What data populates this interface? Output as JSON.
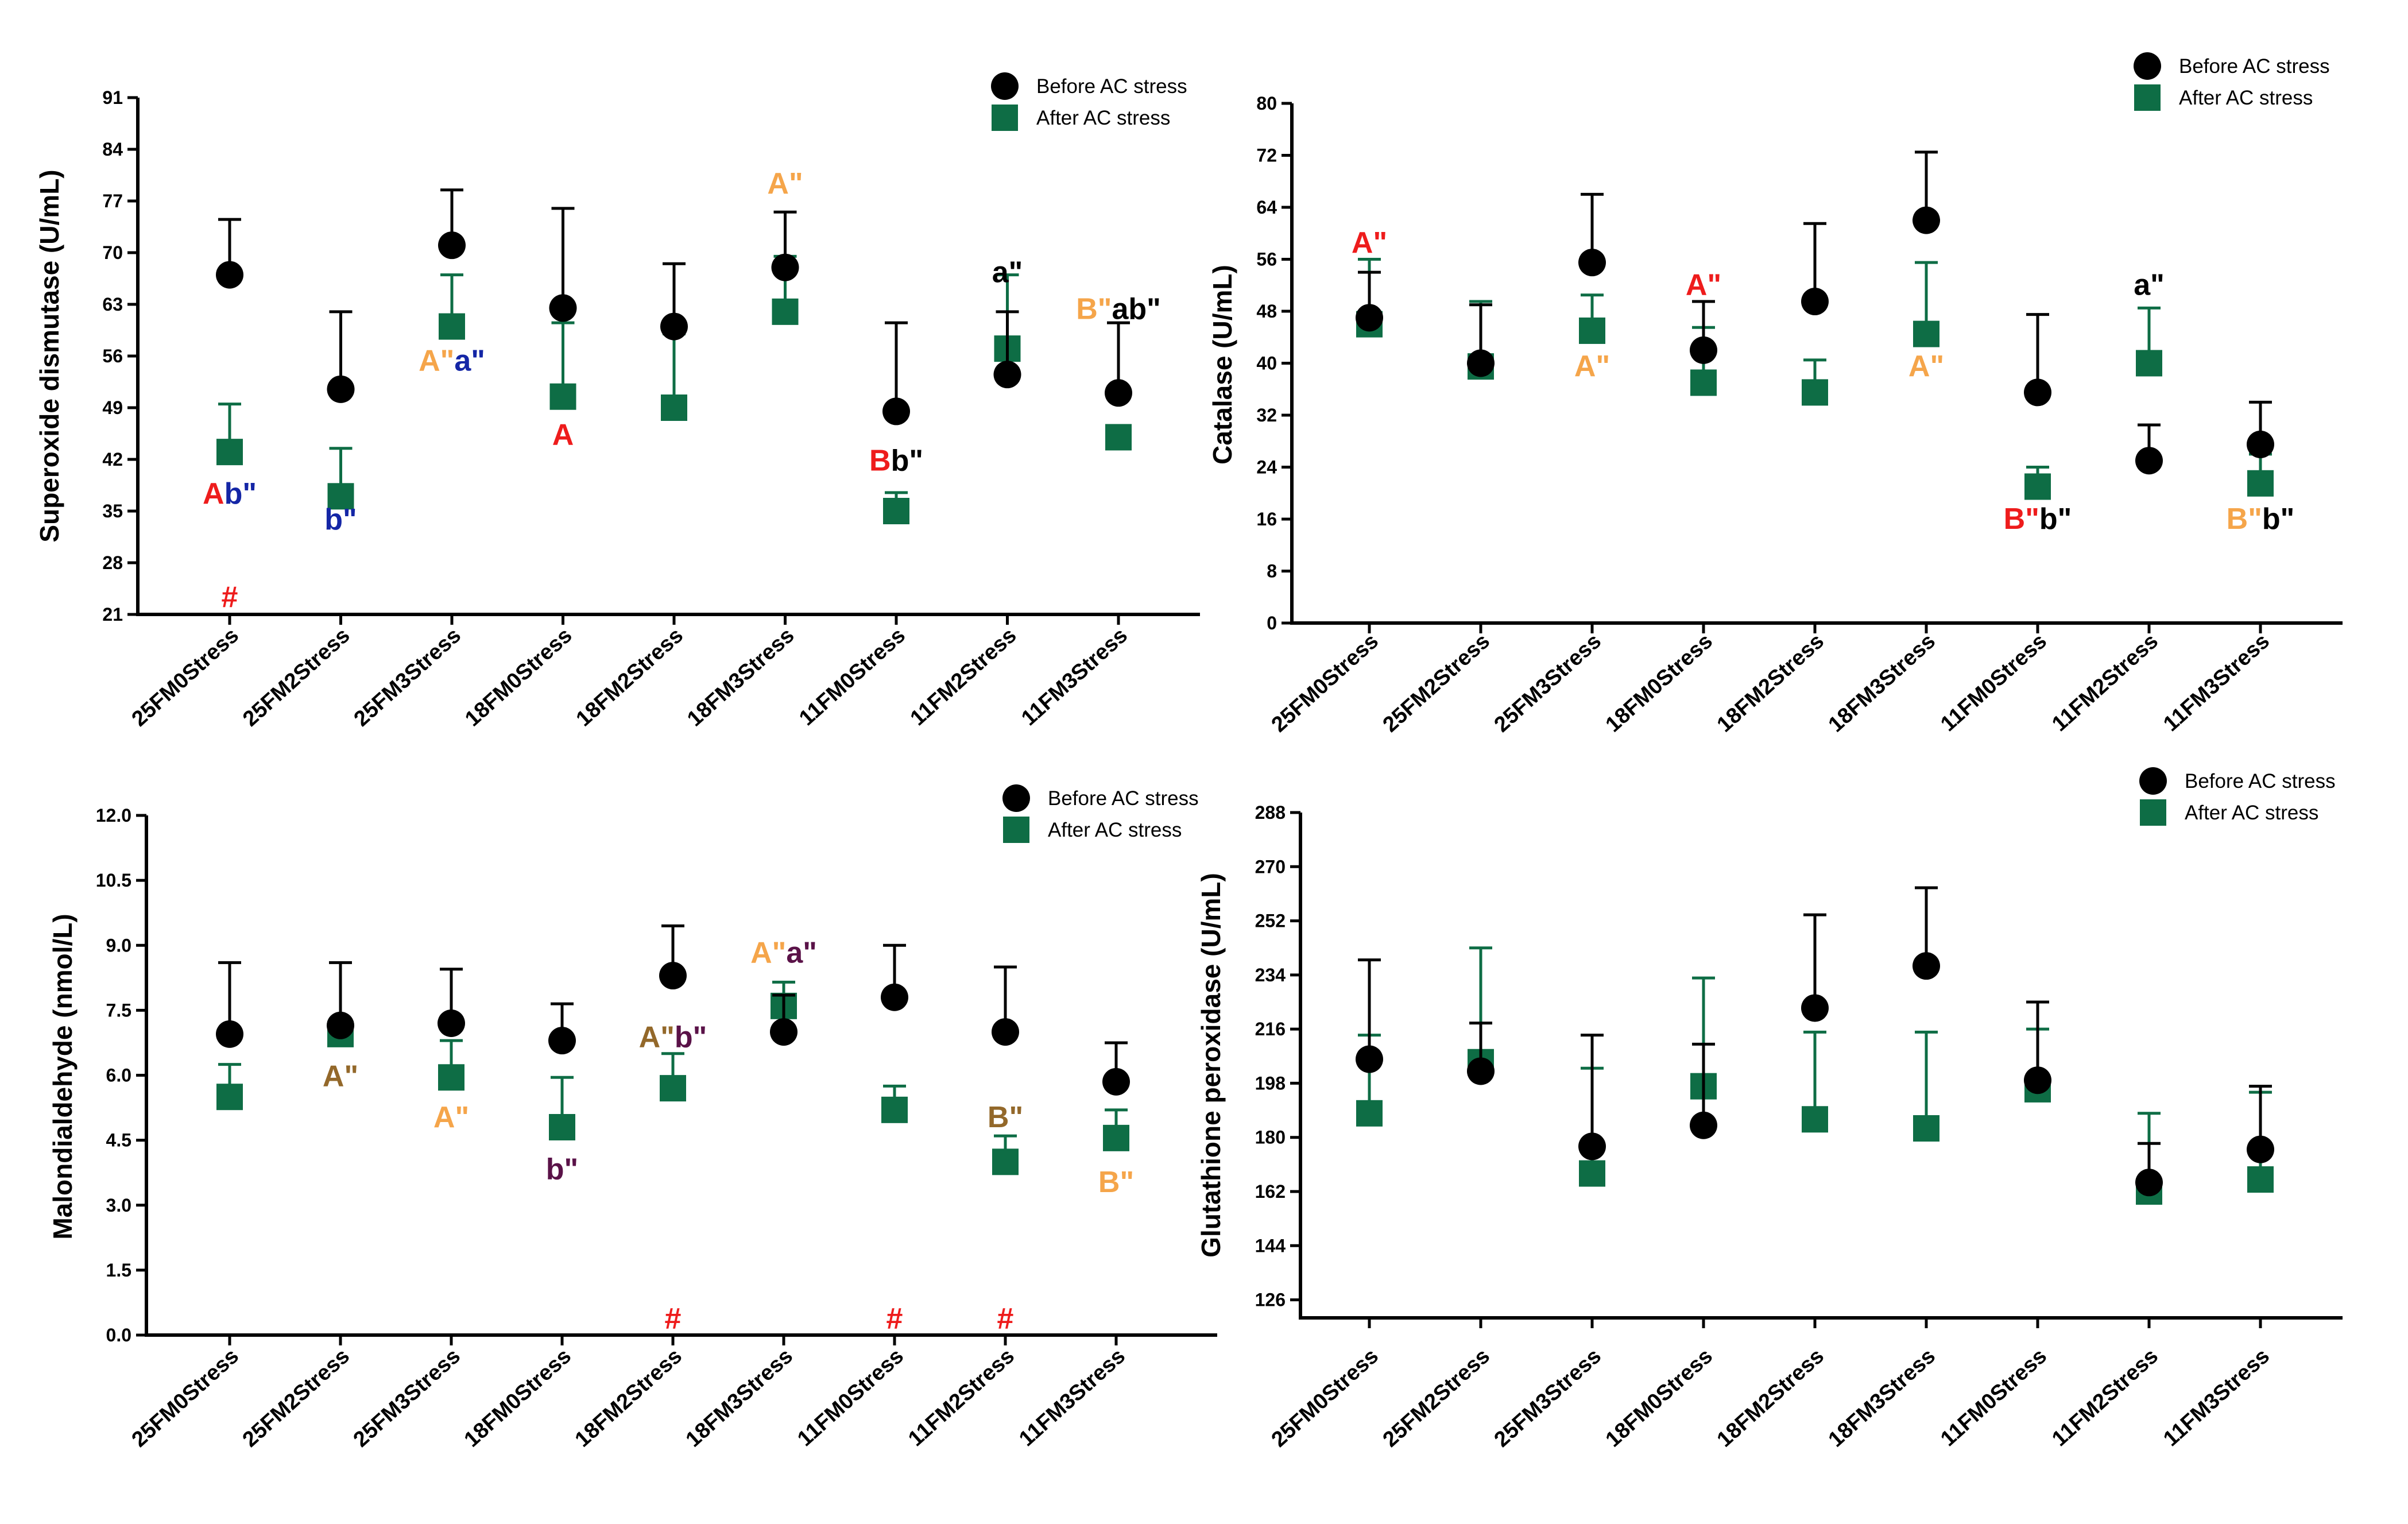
{
  "colors": {
    "before": "#000000",
    "after": "#0e6d45",
    "red": "#ee1c1c",
    "orange": "#f5a54a",
    "blue": "#1426a6",
    "black": "#000000",
    "brown": "#93682a",
    "purple": "#5a1248"
  },
  "chart_data": [
    {
      "type": "scatter",
      "ylabel": "Superoxide dismutase (U/mL)",
      "ylim": [
        21,
        91
      ],
      "yticks": [
        21,
        28,
        35,
        42,
        49,
        56,
        63,
        70,
        77,
        84,
        91
      ],
      "categories": [
        "25FM0Stress",
        "25FM2Stress",
        "25FM3Stress",
        "18FM0Stress",
        "18FM2Stress",
        "18FM3Stress",
        "11FM0Stress",
        "11FM2Stress",
        "11FM3Stress"
      ],
      "series": [
        {
          "name": "Before AC stress",
          "marker": "circle",
          "values": [
            67,
            51.5,
            71,
            62.5,
            60,
            68,
            48.5,
            53.5,
            51
          ],
          "errors": [
            7.5,
            10.5,
            7.5,
            13.5,
            8.5,
            7.5,
            12,
            8.5,
            9.5
          ]
        },
        {
          "name": "After AC stress",
          "marker": "square",
          "values": [
            43,
            37,
            60,
            50.5,
            49,
            62,
            35,
            57,
            45
          ],
          "errors": [
            6.5,
            6.5,
            7,
            10,
            10,
            7.5,
            2.5,
            10,
            0
          ]
        }
      ],
      "legend_position": "top-right",
      "annotations": [
        {
          "x": 0,
          "y": 36,
          "parts": [
            {
              "text": "A",
              "color": "red"
            },
            {
              "text": "b\"",
              "color": "blue"
            }
          ]
        },
        {
          "x": 0,
          "y": 22,
          "parts": [
            {
              "text": "#",
              "color": "red"
            }
          ]
        },
        {
          "x": 1,
          "y": 32.5,
          "parts": [
            {
              "text": "b\"",
              "color": "blue"
            }
          ]
        },
        {
          "x": 2,
          "y": 54,
          "parts": [
            {
              "text": "A\"",
              "color": "orange"
            },
            {
              "text": "a\"",
              "color": "blue"
            }
          ]
        },
        {
          "x": 3,
          "y": 44,
          "parts": [
            {
              "text": "A",
              "color": "red"
            }
          ]
        },
        {
          "x": 5,
          "y": 78,
          "parts": [
            {
              "text": "A\"",
              "color": "orange"
            }
          ]
        },
        {
          "x": 6,
          "y": 40.5,
          "parts": [
            {
              "text": "B",
              "color": "red"
            },
            {
              "text": "b\"",
              "color": "black"
            }
          ]
        },
        {
          "x": 7,
          "y": 66,
          "parts": [
            {
              "text": "a\"",
              "color": "black"
            }
          ]
        },
        {
          "x": 8,
          "y": 61,
          "parts": [
            {
              "text": "B\"",
              "color": "orange"
            },
            {
              "text": "ab\"",
              "color": "black"
            }
          ]
        }
      ]
    },
    {
      "type": "scatter",
      "ylabel": "Catalase (U/mL)",
      "ylim": [
        0,
        80
      ],
      "yticks": [
        0,
        8,
        16,
        24,
        32,
        40,
        48,
        56,
        64,
        72,
        80
      ],
      "categories": [
        "25FM0Stress",
        "25FM2Stress",
        "25FM3Stress",
        "18FM0Stress",
        "18FM2Stress",
        "18FM3Stress",
        "11FM0Stress",
        "11FM2Stress",
        "11FM3Stress"
      ],
      "series": [
        {
          "name": "Before AC stress",
          "marker": "circle",
          "values": [
            47,
            40,
            55.5,
            42,
            49.5,
            62,
            35.5,
            25,
            27.5
          ],
          "errors": [
            7,
            9,
            10.5,
            7.5,
            12,
            10.5,
            12,
            5.5,
            6.5
          ]
        },
        {
          "name": "After AC stress",
          "marker": "square",
          "values": [
            46,
            39.5,
            45,
            37,
            35.5,
            44.5,
            21,
            40,
            21.5
          ],
          "errors": [
            10,
            10,
            5.5,
            8.5,
            5,
            11,
            3,
            8.5,
            4.5
          ]
        }
      ],
      "legend_position": "top-right",
      "annotations": [
        {
          "x": 0,
          "y": 57,
          "parts": [
            {
              "text": "A\"",
              "color": "red"
            }
          ]
        },
        {
          "x": 2,
          "y": 38,
          "parts": [
            {
              "text": "A\"",
              "color": "orange"
            }
          ]
        },
        {
          "x": 3,
          "y": 50.5,
          "parts": [
            {
              "text": "A\"",
              "color": "red"
            }
          ]
        },
        {
          "x": 5,
          "y": 38,
          "parts": [
            {
              "text": "A\"",
              "color": "orange"
            }
          ]
        },
        {
          "x": 6,
          "y": 14.5,
          "parts": [
            {
              "text": "B\"",
              "color": "red"
            },
            {
              "text": "b\"",
              "color": "black"
            }
          ]
        },
        {
          "x": 7,
          "y": 50.5,
          "parts": [
            {
              "text": "a\"",
              "color": "black"
            }
          ]
        },
        {
          "x": 8,
          "y": 14.5,
          "parts": [
            {
              "text": "B\"",
              "color": "orange"
            },
            {
              "text": "b\"",
              "color": "black"
            }
          ]
        }
      ]
    },
    {
      "type": "scatter",
      "ylabel": "Malondialdehyde (nmol/L)",
      "ylim": [
        0,
        12
      ],
      "yticks": [
        "0.0",
        "1.5",
        "3.0",
        "4.5",
        "6.0",
        "7.5",
        "9.0",
        "10.5",
        "12.0"
      ],
      "categories": [
        "25FM0Stress",
        "25FM2Stress",
        "25FM3Stress",
        "18FM0Stress",
        "18FM2Stress",
        "18FM3Stress",
        "11FM0Stress",
        "11FM2Stress",
        "11FM3Stress"
      ],
      "series": [
        {
          "name": "Before AC stress",
          "marker": "circle",
          "values": [
            6.95,
            7.15,
            7.2,
            6.8,
            8.3,
            7,
            7.8,
            7,
            5.85
          ],
          "errors": [
            1.65,
            1.45,
            1.25,
            0.85,
            1.15,
            0.85,
            1.2,
            1.5,
            0.9
          ]
        },
        {
          "name": "After AC stress",
          "marker": "square",
          "values": [
            5.5,
            6.95,
            5.95,
            4.8,
            5.7,
            7.6,
            5.2,
            4,
            4.55
          ],
          "errors": [
            0.75,
            0.35,
            0.85,
            1.15,
            0.8,
            0.55,
            0.55,
            0.6,
            0.65
          ]
        }
      ],
      "legend_position": "top-right",
      "annotations": [
        {
          "x": 1,
          "y": 5.75,
          "parts": [
            {
              "text": "A\"",
              "color": "brown"
            }
          ]
        },
        {
          "x": 2,
          "y": 4.8,
          "parts": [
            {
              "text": "A\"",
              "color": "orange"
            }
          ]
        },
        {
          "x": 3,
          "y": 3.6,
          "parts": [
            {
              "text": "b\"",
              "color": "purple"
            }
          ]
        },
        {
          "x": 4,
          "y": 6.65,
          "parts": [
            {
              "text": "A\"",
              "color": "brown"
            },
            {
              "text": "b\"",
              "color": "purple"
            }
          ]
        },
        {
          "x": 4,
          "y": 0.15,
          "parts": [
            {
              "text": "#",
              "color": "red"
            }
          ]
        },
        {
          "x": 5,
          "y": 8.6,
          "parts": [
            {
              "text": "A\"",
              "color": "orange"
            },
            {
              "text": "a\"",
              "color": "purple"
            }
          ]
        },
        {
          "x": 6,
          "y": 0.15,
          "parts": [
            {
              "text": "#",
              "color": "red"
            }
          ]
        },
        {
          "x": 7,
          "y": 4.8,
          "parts": [
            {
              "text": "B\"",
              "color": "brown"
            }
          ]
        },
        {
          "x": 7,
          "y": 0.15,
          "parts": [
            {
              "text": "#",
              "color": "red"
            }
          ]
        },
        {
          "x": 8,
          "y": 3.3,
          "parts": [
            {
              "text": "B\"",
              "color": "orange"
            }
          ]
        }
      ]
    },
    {
      "type": "scatter",
      "ylabel": "Glutathione peroxidase (U/mL)",
      "ylim": [
        120,
        288
      ],
      "yticks": [
        126,
        144,
        162,
        180,
        198,
        216,
        234,
        252,
        270,
        288
      ],
      "categories": [
        "25FM0Stress",
        "25FM2Stress",
        "25FM3Stress",
        "18FM0Stress",
        "18FM2Stress",
        "18FM3Stress",
        "11FM0Stress",
        "11FM2Stress",
        "11FM3Stress"
      ],
      "series": [
        {
          "name": "Before AC stress",
          "marker": "circle",
          "values": [
            206,
            202,
            177,
            184,
            223,
            237,
            199,
            165,
            176
          ],
          "errors": [
            33,
            16,
            37,
            27,
            31,
            26,
            26,
            13,
            21
          ]
        },
        {
          "name": "After AC stress",
          "marker": "square",
          "values": [
            188,
            205,
            168,
            197,
            186,
            183,
            196,
            162,
            166
          ],
          "errors": [
            26,
            38,
            35,
            36,
            29,
            32,
            20,
            26,
            29
          ]
        }
      ],
      "legend_position": "top-right",
      "annotations": []
    }
  ]
}
